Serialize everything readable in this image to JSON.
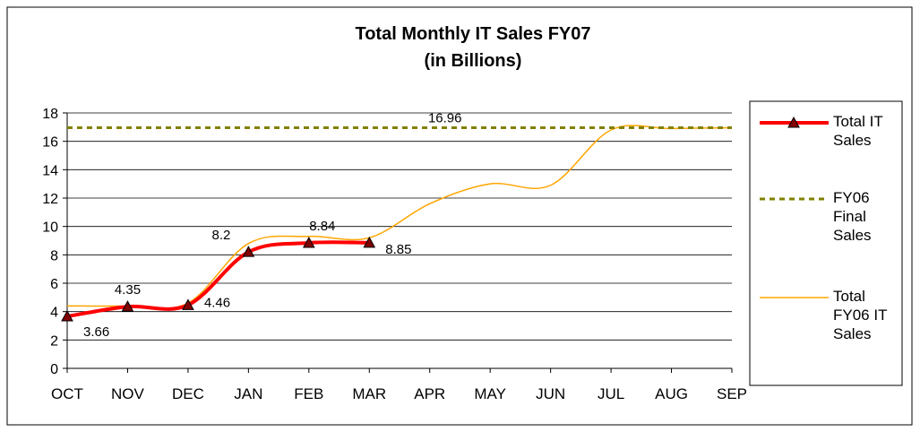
{
  "chart_data": {
    "type": "line",
    "title": "Total Monthly IT Sales FY07",
    "subtitle": "(in Billions)",
    "categories": [
      "OCT",
      "NOV",
      "DEC",
      "JAN",
      "FEB",
      "MAR",
      "APR",
      "MAY",
      "JUN",
      "JUL",
      "AUG",
      "SEP"
    ],
    "series": [
      {
        "name": "Total IT Sales",
        "color": "#ff0000",
        "values": [
          3.66,
          4.35,
          4.46,
          8.2,
          8.84,
          8.85,
          null,
          null,
          null,
          null,
          null,
          null
        ]
      },
      {
        "name": "FY06 Final Sales",
        "color": "#808000",
        "values": [
          16.96,
          16.96,
          16.96,
          16.96,
          16.96,
          16.96,
          16.96,
          16.96,
          16.96,
          16.96,
          16.96,
          16.96
        ]
      },
      {
        "name": "Total FY06 IT Sales",
        "color": "#ffa500",
        "values": [
          4.4,
          4.4,
          4.6,
          8.8,
          9.3,
          9.2,
          11.6,
          13.0,
          12.9,
          16.8,
          16.9,
          16.96
        ]
      }
    ],
    "ylim": [
      0,
      18
    ],
    "yticks": [
      0,
      2,
      4,
      6,
      8,
      10,
      12,
      14,
      16,
      18
    ],
    "grid": true,
    "legend": "right"
  }
}
